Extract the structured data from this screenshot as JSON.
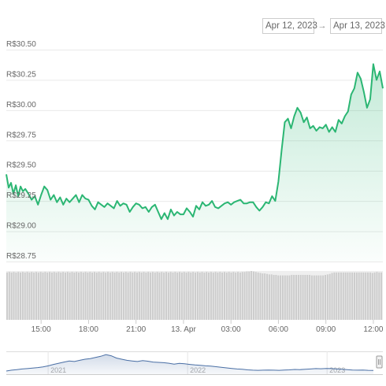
{
  "range_selector": {
    "from": "Apr 12, 2023",
    "arrow": "→",
    "to": "Apr 13, 2023"
  },
  "chart_data": {
    "type": "line",
    "title": "",
    "xlabel": "",
    "ylabel": "",
    "y_tick_labels": [
      "R$30.50",
      "R$30.25",
      "R$30.00",
      "R$29.75",
      "R$29.50",
      "R$29.25",
      "R$29.00",
      "R$28.75"
    ],
    "y_tick_values": [
      30.5,
      30.25,
      30.0,
      29.75,
      29.5,
      29.25,
      29.0,
      28.75
    ],
    "ylim": [
      28.75,
      30.5
    ],
    "x_tick_labels": [
      "15:00",
      "18:00",
      "21:00",
      "13. Apr",
      "03:00",
      "06:00",
      "09:00",
      "12:00"
    ],
    "x_tick_hours": [
      15,
      18,
      21,
      24,
      27,
      30,
      33,
      36
    ],
    "xlim_hours": [
      12.8,
      36.6
    ],
    "grid": true,
    "line_color": "#2bb673",
    "series": [
      {
        "x_hours": [
          12.8,
          12.95,
          13.1,
          13.25,
          13.4,
          13.55,
          13.7,
          13.85,
          14.0,
          14.2,
          14.4,
          14.6,
          14.8,
          15.0,
          15.2,
          15.4,
          15.6,
          15.8,
          16.0,
          16.2,
          16.4,
          16.6,
          16.8,
          17.0,
          17.2,
          17.4,
          17.6,
          17.8,
          18.0,
          18.2,
          18.4,
          18.6,
          18.8,
          19.0,
          19.2,
          19.4,
          19.6,
          19.8,
          20.0,
          20.2,
          20.4,
          20.6,
          20.8,
          21.0,
          21.2,
          21.4,
          21.6,
          21.8,
          22.0,
          22.2,
          22.4,
          22.6,
          22.8,
          23.0,
          23.2,
          23.4,
          23.6,
          23.8,
          24.0,
          24.2,
          24.4,
          24.6,
          24.8,
          25.0,
          25.2,
          25.4,
          25.6,
          25.8,
          26.0,
          26.2,
          26.4,
          26.6,
          26.8,
          27.0,
          27.2,
          27.4,
          27.6,
          27.8,
          28.0,
          28.2,
          28.4,
          28.6,
          28.8,
          29.0,
          29.2,
          29.4,
          29.6,
          29.8,
          30.0,
          30.2,
          30.4,
          30.6,
          30.8,
          31.0,
          31.2,
          31.4,
          31.6,
          31.8,
          32.0,
          32.2,
          32.4,
          32.6,
          32.8,
          33.0,
          33.2,
          33.4,
          33.6,
          33.8,
          34.0,
          34.2,
          34.4,
          34.6,
          34.8,
          35.0,
          35.2,
          35.4,
          35.6,
          35.8,
          36.0,
          36.2,
          36.4,
          36.6
        ],
        "values": [
          29.47,
          29.36,
          29.4,
          29.31,
          29.38,
          29.29,
          29.37,
          29.33,
          29.35,
          29.31,
          29.26,
          29.29,
          29.22,
          29.3,
          29.37,
          29.34,
          29.26,
          29.3,
          29.24,
          29.28,
          29.22,
          29.27,
          29.24,
          29.27,
          29.3,
          29.24,
          29.3,
          29.27,
          29.26,
          29.21,
          29.18,
          29.24,
          29.22,
          29.2,
          29.23,
          29.21,
          29.19,
          29.25,
          29.21,
          29.23,
          29.22,
          29.16,
          29.2,
          29.23,
          29.22,
          29.19,
          29.2,
          29.16,
          29.2,
          29.22,
          29.16,
          29.1,
          29.15,
          29.1,
          29.18,
          29.13,
          29.16,
          29.14,
          29.14,
          29.19,
          29.16,
          29.12,
          29.21,
          29.18,
          29.24,
          29.21,
          29.22,
          29.25,
          29.2,
          29.19,
          29.21,
          29.23,
          29.24,
          29.22,
          29.24,
          29.25,
          29.26,
          29.23,
          29.23,
          29.24,
          29.24,
          29.2,
          29.17,
          29.2,
          29.24,
          29.23,
          29.29,
          29.25,
          29.41,
          29.67,
          29.9,
          29.93,
          29.85,
          29.95,
          30.02,
          29.98,
          29.9,
          29.94,
          29.85,
          29.87,
          29.83,
          29.86,
          29.85,
          29.88,
          29.82,
          29.86,
          29.82,
          29.92,
          29.89,
          29.95,
          29.99,
          30.13,
          30.18,
          30.31,
          30.26,
          30.15,
          30.02,
          30.09,
          30.38,
          30.25,
          30.32,
          30.18
        ]
      }
    ],
    "volume": {
      "type": "bar",
      "color": "#cccccc",
      "relative_heights": [
        0.97,
        0.98,
        0.97,
        0.98,
        0.97,
        0.98,
        0.97,
        0.98,
        0.97,
        0.98,
        0.97,
        0.98,
        0.97,
        0.98,
        0.97,
        0.98,
        0.97,
        0.98,
        0.97,
        0.98,
        0.97,
        0.98,
        0.97,
        0.98,
        0.97,
        0.98,
        0.97,
        0.98,
        0.97,
        0.98,
        0.97,
        0.98,
        0.97,
        0.98,
        0.97,
        0.98,
        0.97,
        0.98,
        0.97,
        0.98,
        0.97,
        0.98,
        0.97,
        0.98,
        0.97,
        0.98,
        0.97,
        0.98,
        0.97,
        0.98,
        0.97,
        0.98,
        0.97,
        0.98,
        0.97,
        0.98,
        0.97,
        0.98,
        0.97,
        0.98,
        0.97,
        0.98,
        0.97,
        0.98,
        0.97,
        0.98,
        0.97,
        0.98,
        0.97,
        0.98,
        0.97,
        0.98,
        0.97,
        0.98,
        0.97,
        0.98,
        0.97,
        0.98,
        0.97,
        0.98,
        0.97,
        0.98,
        0.97,
        0.98,
        0.97,
        0.98,
        0.97,
        0.98,
        0.97,
        0.98,
        0.97,
        0.98,
        0.97,
        0.98,
        0.97,
        0.98,
        0.97,
        0.98,
        0.97,
        0.98,
        0.97,
        0.98,
        0.97,
        0.98,
        0.97,
        0.98,
        0.98,
        0.99,
        0.99,
        1.0,
        0.99,
        0.98,
        0.97,
        0.96,
        0.95,
        0.95,
        0.94,
        0.93,
        0.93,
        0.92,
        0.92,
        0.91,
        0.91,
        0.91,
        0.91,
        0.91,
        0.91,
        0.92,
        0.92,
        0.92,
        0.92,
        0.92,
        0.92,
        0.92,
        0.92,
        0.92,
        0.91,
        0.91,
        0.91,
        0.91,
        0.91,
        0.91,
        0.92,
        0.93,
        0.94,
        0.96,
        0.97,
        0.97,
        0.97,
        0.97,
        0.97,
        0.97,
        0.97,
        0.97,
        0.97,
        0.97,
        0.97,
        0.97,
        0.97,
        0.97,
        0.97,
        0.97,
        0.97,
        0.96,
        0.97,
        0.98,
        0.97,
        0.97
      ]
    },
    "navigator": {
      "x_tick_labels": [
        "2021",
        "2022",
        "2023"
      ],
      "x_tick_years": [
        2021,
        2022,
        2023
      ],
      "xlim_years": [
        2020.7,
        2023.4
      ],
      "line_color": "#4a6fa5",
      "relative_values": [
        0.0,
        0.05,
        0.08,
        0.12,
        0.14,
        0.17,
        0.2,
        0.24,
        0.3,
        0.38,
        0.45,
        0.52,
        0.58,
        0.55,
        0.62,
        0.68,
        0.72,
        0.78,
        0.85,
        0.95,
        0.88,
        0.75,
        0.68,
        0.62,
        0.58,
        0.55,
        0.6,
        0.57,
        0.52,
        0.5,
        0.48,
        0.45,
        0.4,
        0.44,
        0.42,
        0.38,
        0.35,
        0.33,
        0.3,
        0.28,
        0.25,
        0.22,
        0.18,
        0.15,
        0.12,
        0.1,
        0.07,
        0.05,
        0.04,
        0.05,
        0.06,
        0.05,
        0.04,
        0.06,
        0.07,
        0.09,
        0.08,
        0.1,
        0.12,
        0.14,
        0.13,
        0.15,
        0.14,
        0.12,
        0.1,
        0.08,
        0.06,
        0.05,
        0.06,
        0.04,
        0.03
      ]
    }
  }
}
